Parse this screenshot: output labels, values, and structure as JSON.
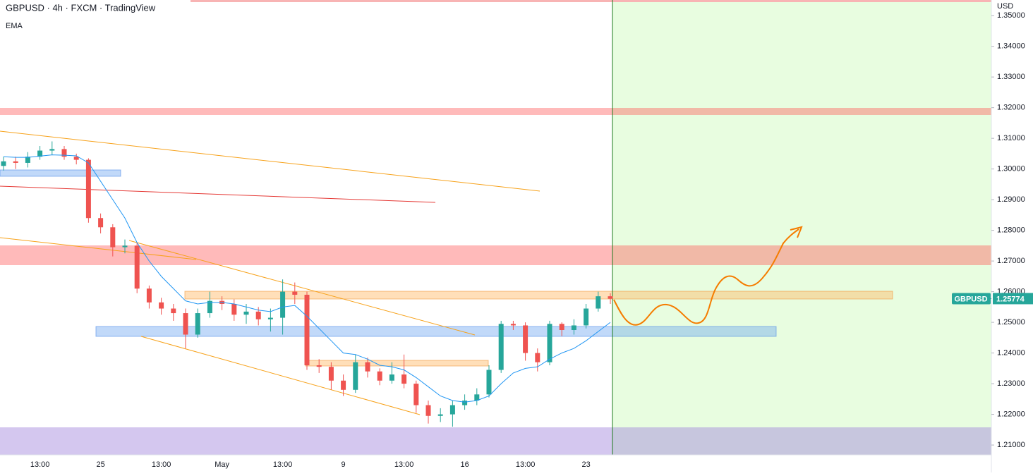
{
  "chart_data": {
    "type": "candlestick",
    "title": "GBPUSD · 4h · FXCM · TradingView",
    "symbol": "GBPUSD",
    "currency": "USD",
    "last_price": 1.25774,
    "last_price_color": "#26a69a",
    "up_color": "#26a69a",
    "down_color": "#ef5350",
    "categories": [
      null,
      null,
      null,
      "13:00",
      null,
      null,
      null,
      null,
      "25",
      null,
      null,
      null,
      null,
      "13:00",
      null,
      null,
      null,
      null,
      "May",
      null,
      null,
      null,
      null,
      "13:00",
      null,
      null,
      null,
      null,
      "9",
      null,
      null,
      null,
      null,
      "13:00",
      null,
      null,
      null,
      null,
      "16",
      null,
      null,
      null,
      null,
      "13:00",
      null,
      null,
      null,
      null,
      "23",
      null,
      null
    ],
    "open": [
      1.301,
      1.3025,
      1.302,
      1.304,
      1.306,
      1.3065,
      1.304,
      1.303,
      1.284,
      1.281,
      1.2745,
      1.275,
      1.261,
      1.2565,
      1.2545,
      1.253,
      1.246,
      1.253,
      1.257,
      1.256,
      1.2525,
      1.2535,
      1.251,
      1.2515,
      1.26,
      1.259,
      1.236,
      1.2355,
      1.231,
      1.228,
      1.237,
      1.234,
      1.231,
      1.233,
      1.23,
      1.223,
      1.2195,
      1.22,
      1.223,
      1.2245,
      1.2265,
      1.2345,
      1.2495,
      1.249,
      1.24,
      1.237,
      1.2495,
      1.2475,
      1.249,
      1.2545,
      1.2585
    ],
    "high": [
      1.304,
      1.304,
      1.3055,
      1.3075,
      1.309,
      1.3075,
      1.305,
      1.3035,
      1.2855,
      1.282,
      1.277,
      1.276,
      1.262,
      1.258,
      1.256,
      1.2545,
      1.2545,
      1.26,
      1.2585,
      1.2575,
      1.256,
      1.255,
      1.2545,
      1.264,
      1.263,
      1.26,
      1.238,
      1.237,
      1.233,
      1.2395,
      1.2385,
      1.235,
      1.237,
      1.2395,
      1.231,
      1.2245,
      1.222,
      1.2245,
      1.2265,
      1.2285,
      1.236,
      1.2505,
      1.2505,
      1.25,
      1.2415,
      1.2505,
      1.25,
      1.251,
      1.256,
      1.26,
      1.2595
    ],
    "low": [
      1.2995,
      1.3,
      1.3005,
      1.303,
      1.3045,
      1.303,
      1.3015,
      1.2825,
      1.279,
      1.2715,
      1.2725,
      1.2595,
      1.2545,
      1.2525,
      1.2505,
      1.2415,
      1.245,
      1.2515,
      1.254,
      1.2505,
      1.2495,
      1.249,
      1.247,
      1.246,
      1.256,
      1.2345,
      1.2335,
      1.228,
      1.226,
      1.227,
      1.232,
      1.2295,
      1.23,
      1.2285,
      1.2205,
      1.217,
      1.2175,
      1.216,
      1.2215,
      1.223,
      1.2255,
      1.2335,
      1.2475,
      1.2375,
      1.234,
      1.236,
      1.2455,
      1.246,
      1.248,
      1.2535,
      1.256
    ],
    "close": [
      1.3025,
      1.302,
      1.304,
      1.306,
      1.3065,
      1.304,
      1.303,
      1.284,
      1.281,
      1.2745,
      1.275,
      1.261,
      1.2565,
      1.2545,
      1.253,
      1.246,
      1.253,
      1.257,
      1.256,
      1.2525,
      1.2535,
      1.251,
      1.2515,
      1.26,
      1.259,
      1.236,
      1.2355,
      1.231,
      1.228,
      1.237,
      1.234,
      1.231,
      1.233,
      1.23,
      1.223,
      1.2195,
      1.22,
      1.223,
      1.2245,
      1.2265,
      1.2345,
      1.2495,
      1.249,
      1.24,
      1.237,
      1.2495,
      1.2475,
      1.249,
      1.2545,
      1.2585,
      1.2577
    ],
    "ema": {
      "name": "EMA",
      "color": "#2196f3",
      "values": [
        1.304,
        1.3038,
        1.3038,
        1.3042,
        1.3046,
        1.3045,
        1.3043,
        1.302,
        1.296,
        1.29,
        1.284,
        1.276,
        1.27,
        1.265,
        1.261,
        1.257,
        1.256,
        1.2565,
        1.2565,
        1.256,
        1.255,
        1.254,
        1.2535,
        1.255,
        1.2555,
        1.252,
        1.248,
        1.244,
        1.24,
        1.2395,
        1.238,
        1.236,
        1.2355,
        1.2345,
        1.232,
        1.229,
        1.226,
        1.2245,
        1.224,
        1.2245,
        1.226,
        1.23,
        1.2335,
        1.235,
        1.2355,
        1.238,
        1.24,
        1.2415,
        1.244,
        1.247,
        1.25
      ]
    },
    "ylim": [
      1.2068,
      1.3551
    ],
    "yticks": [
      {
        "value": 1.21,
        "label": "1.21000"
      },
      {
        "value": 1.22,
        "label": "1.22000"
      },
      {
        "value": 1.23,
        "label": "1.23000"
      },
      {
        "value": 1.24,
        "label": "1.24000"
      },
      {
        "value": 1.25,
        "label": "1.25000"
      },
      {
        "value": 1.26,
        "label": "1.26000"
      },
      {
        "value": 1.27,
        "label": "1.27000"
      },
      {
        "value": 1.28,
        "label": "1.28000"
      },
      {
        "value": 1.29,
        "label": "1.29000"
      },
      {
        "value": 1.3,
        "label": "1.30000"
      },
      {
        "value": 1.31,
        "label": "1.31000"
      },
      {
        "value": 1.32,
        "label": "1.32000"
      },
      {
        "value": 1.33,
        "label": "1.33000"
      },
      {
        "value": 1.34,
        "label": "1.34000"
      },
      {
        "value": 1.35,
        "label": "1.35000"
      }
    ]
  }
}
